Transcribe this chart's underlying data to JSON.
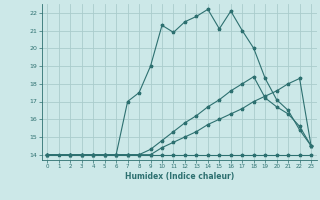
{
  "xlabel": "Humidex (Indice chaleur)",
  "bg_color": "#cce8e8",
  "grid_color": "#aacccc",
  "line_color": "#2d7070",
  "xlim": [
    -0.5,
    23.5
  ],
  "ylim": [
    13.7,
    22.5
  ],
  "xticks": [
    0,
    1,
    2,
    3,
    4,
    5,
    6,
    7,
    8,
    9,
    10,
    11,
    12,
    13,
    14,
    15,
    16,
    17,
    18,
    19,
    20,
    21,
    22,
    23
  ],
  "yticks": [
    14,
    15,
    16,
    17,
    18,
    19,
    20,
    21,
    22
  ],
  "curve1_x": [
    0,
    1,
    2,
    3,
    4,
    5,
    6,
    7,
    8,
    9,
    10,
    11,
    12,
    13,
    14,
    15,
    16,
    17,
    18,
    19,
    20,
    21,
    22,
    23
  ],
  "curve1_y": [
    14,
    14,
    14,
    14,
    14,
    14,
    14,
    14,
    14,
    14,
    14,
    14,
    14,
    14,
    14,
    14,
    14,
    14,
    14,
    14,
    14,
    14,
    14,
    14
  ],
  "curve2_x": [
    0,
    2,
    3,
    4,
    5,
    6,
    7,
    8,
    9,
    10,
    11,
    12,
    13,
    14,
    15,
    16,
    17,
    18,
    19,
    20,
    21,
    22,
    23
  ],
  "curve2_y": [
    14,
    14,
    14,
    14,
    14,
    14,
    14,
    14,
    14,
    14.4,
    14.7,
    15.0,
    15.3,
    15.7,
    16.0,
    16.3,
    16.6,
    17.0,
    17.3,
    17.6,
    18.0,
    18.3,
    14.5
  ],
  "curve3_x": [
    0,
    2,
    3,
    4,
    5,
    6,
    7,
    8,
    9,
    10,
    11,
    12,
    13,
    14,
    15,
    16,
    17,
    18,
    19,
    20,
    21,
    22,
    23
  ],
  "curve3_y": [
    14,
    14,
    14,
    14,
    14,
    14,
    14,
    14,
    14.3,
    14.8,
    15.3,
    15.8,
    16.2,
    16.7,
    17.1,
    17.6,
    18.0,
    18.4,
    17.2,
    16.7,
    16.3,
    15.6,
    14.5
  ],
  "curve4_x": [
    0,
    2,
    3,
    4,
    5,
    6,
    7,
    8,
    9,
    10,
    11,
    12,
    13,
    14,
    15,
    16,
    17,
    18,
    19,
    20,
    21,
    22,
    23
  ],
  "curve4_y": [
    14,
    14,
    14,
    14,
    14,
    14,
    17.0,
    17.5,
    19.0,
    21.3,
    20.9,
    21.5,
    21.8,
    22.2,
    21.1,
    22.1,
    21.0,
    20.0,
    18.3,
    17.1,
    16.5,
    15.4,
    14.5
  ]
}
